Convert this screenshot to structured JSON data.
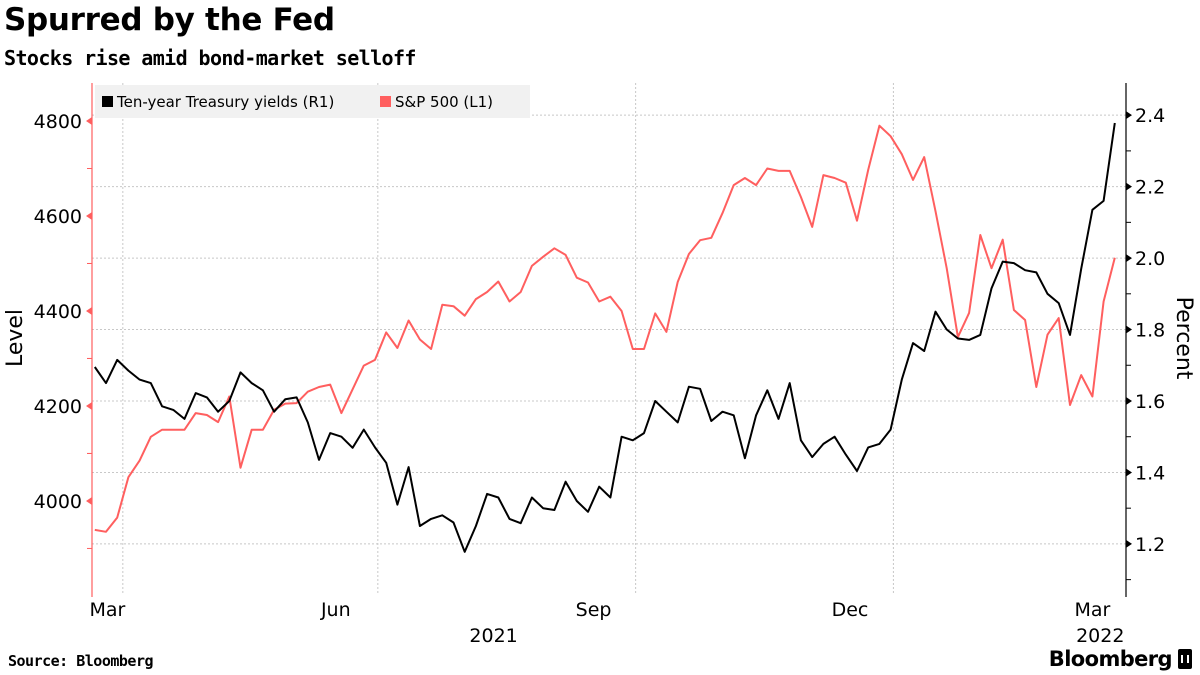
{
  "title": "Spurred by the Fed",
  "subtitle": "Stocks rise amid bond-market selloff",
  "source": "Source: Bloomberg",
  "logo": "Bloomberg",
  "chart_data": {
    "type": "line",
    "legend": {
      "placement": "top-left",
      "entries": [
        "Ten-year Treasury yields (R1)",
        "S&P 500 (L1)"
      ]
    },
    "grid": true,
    "x": [
      "2021-03-22",
      "2021-03-26",
      "2021-03-30",
      "2021-04-03",
      "2021-04-07",
      "2021-04-11",
      "2021-04-15",
      "2021-04-19",
      "2021-04-23",
      "2021-04-27",
      "2021-05-01",
      "2021-05-05",
      "2021-05-09",
      "2021-05-13",
      "2021-05-17",
      "2021-05-21",
      "2021-05-25",
      "2021-05-29",
      "2021-06-02",
      "2021-06-06",
      "2021-06-10",
      "2021-06-14",
      "2021-06-18",
      "2021-06-22",
      "2021-06-26",
      "2021-06-30",
      "2021-07-04",
      "2021-07-08",
      "2021-07-12",
      "2021-07-16",
      "2021-07-20",
      "2021-07-24",
      "2021-07-28",
      "2021-08-01",
      "2021-08-05",
      "2021-08-09",
      "2021-08-13",
      "2021-08-17",
      "2021-08-21",
      "2021-08-25",
      "2021-08-29",
      "2021-09-02",
      "2021-09-06",
      "2021-09-10",
      "2021-09-14",
      "2021-09-18",
      "2021-09-22",
      "2021-09-26",
      "2021-09-30",
      "2021-10-04",
      "2021-10-08",
      "2021-10-12",
      "2021-10-16",
      "2021-10-20",
      "2021-10-24",
      "2021-10-28",
      "2021-11-01",
      "2021-11-05",
      "2021-11-09",
      "2021-11-13",
      "2021-11-17",
      "2021-11-21",
      "2021-11-25",
      "2021-11-29",
      "2021-12-03",
      "2021-12-07",
      "2021-12-11",
      "2021-12-15",
      "2021-12-19",
      "2021-12-23",
      "2021-12-27",
      "2021-12-31",
      "2022-01-04",
      "2022-01-08",
      "2022-01-12",
      "2022-01-16",
      "2022-01-20",
      "2022-01-24",
      "2022-01-28",
      "2022-02-01",
      "2022-02-05",
      "2022-02-09",
      "2022-02-13",
      "2022-02-17",
      "2022-02-21",
      "2022-02-25",
      "2022-03-01",
      "2022-03-05",
      "2022-03-09",
      "2022-03-13",
      "2022-03-17",
      "2022-03-21"
    ],
    "series": [
      {
        "name": "Ten-year Treasury yields (R1)",
        "axis": "right",
        "color": "#000000",
        "values": [
          1.695,
          1.65,
          1.715,
          1.685,
          1.66,
          1.65,
          1.585,
          1.575,
          1.55,
          1.622,
          1.61,
          1.57,
          1.6,
          1.68,
          1.65,
          1.63,
          1.57,
          1.605,
          1.61,
          1.54,
          1.435,
          1.51,
          1.5,
          1.469,
          1.52,
          1.47,
          1.427,
          1.31,
          1.415,
          1.25,
          1.27,
          1.28,
          1.26,
          1.178,
          1.25,
          1.34,
          1.33,
          1.27,
          1.258,
          1.33,
          1.3,
          1.295,
          1.374,
          1.32,
          1.29,
          1.36,
          1.33,
          1.5,
          1.49,
          1.51,
          1.6,
          1.57,
          1.54,
          1.64,
          1.634,
          1.544,
          1.57,
          1.56,
          1.44,
          1.56,
          1.63,
          1.55,
          1.65,
          1.49,
          1.443,
          1.48,
          1.5,
          1.45,
          1.404,
          1.47,
          1.48,
          1.52,
          1.66,
          1.762,
          1.74,
          1.85,
          1.8,
          1.775,
          1.771,
          1.785,
          1.915,
          1.99,
          1.986,
          1.966,
          1.96,
          1.9,
          1.874,
          1.785,
          1.97,
          2.135,
          2.16,
          2.378
        ]
      },
      {
        "name": "S&P 500 (L1)",
        "axis": "left",
        "color": "#ff5f5f",
        "values": [
          3939,
          3935,
          3965,
          4050,
          4085,
          4135,
          4150,
          4150,
          4150,
          4185,
          4181,
          4166,
          4220,
          4070,
          4150,
          4150,
          4192,
          4205,
          4206,
          4230,
          4240,
          4245,
          4185,
          4235,
          4285,
          4297,
          4355,
          4322,
          4380,
          4340,
          4320,
          4413,
          4410,
          4390,
          4425,
          4440,
          4462,
          4420,
          4440,
          4495,
          4514,
          4532,
          4518,
          4470,
          4460,
          4420,
          4430,
          4400,
          4320,
          4320,
          4395,
          4356,
          4461,
          4520,
          4549,
          4554,
          4606,
          4665,
          4680,
          4665,
          4700,
          4695,
          4695,
          4640,
          4577,
          4686,
          4680,
          4670,
          4590,
          4697,
          4790,
          4768,
          4730,
          4676,
          4724,
          4610,
          4490,
          4345,
          4396,
          4560,
          4490,
          4550,
          4402,
          4381,
          4240,
          4350,
          4385,
          4202,
          4265,
          4220,
          4420,
          4512
        ]
      }
    ],
    "left_axis": {
      "title": "Level",
      "ticks": [
        "4000",
        "4200",
        "4400",
        "4600",
        "4800"
      ],
      "range": [
        3802,
        4880
      ]
    },
    "right_axis": {
      "title": "Percent",
      "ticks": [
        "1.2",
        "1.4",
        "1.6",
        "1.8",
        "2.0",
        "2.2",
        "2.4"
      ],
      "range": [
        1.057,
        2.49
      ]
    },
    "x_axis": {
      "range": [
        "2021-03-21",
        "2022-03-25"
      ],
      "month_labels": [
        {
          "label": "Mar",
          "month": "2021-03"
        },
        {
          "label": "Jun",
          "month": "2021-06"
        },
        {
          "label": "Sep",
          "month": "2021-09"
        },
        {
          "label": "Dec",
          "month": "2021-12"
        },
        {
          "label": "Mar",
          "month": "2022-03"
        }
      ],
      "year_labels": [
        {
          "label": "2021",
          "month": "2021-09"
        },
        {
          "label": "2022",
          "month": "2022-01"
        }
      ]
    }
  }
}
